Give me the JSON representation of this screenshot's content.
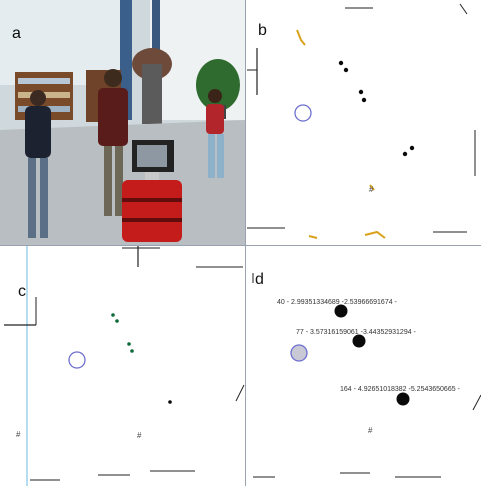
{
  "panels": {
    "a": {
      "label": "a"
    },
    "b": {
      "label": "b"
    },
    "c": {
      "label": "c"
    },
    "d": {
      "label": "d",
      "annotations": [
        {
          "text": "40 - 2.99351334689 -2.53966691674 -"
        },
        {
          "text": "77 - 3.57316159061 -3.44352931294 -"
        },
        {
          "text": "164 - 4.92651018382 -5.2543650665 -"
        }
      ]
    }
  },
  "colors": {
    "robot_circle": "#6d6fd0",
    "robot_fill_d": "#c9c9d6",
    "track": "#0d6b3a",
    "obstacle": "#d9a21b",
    "wall": "#222222"
  }
}
